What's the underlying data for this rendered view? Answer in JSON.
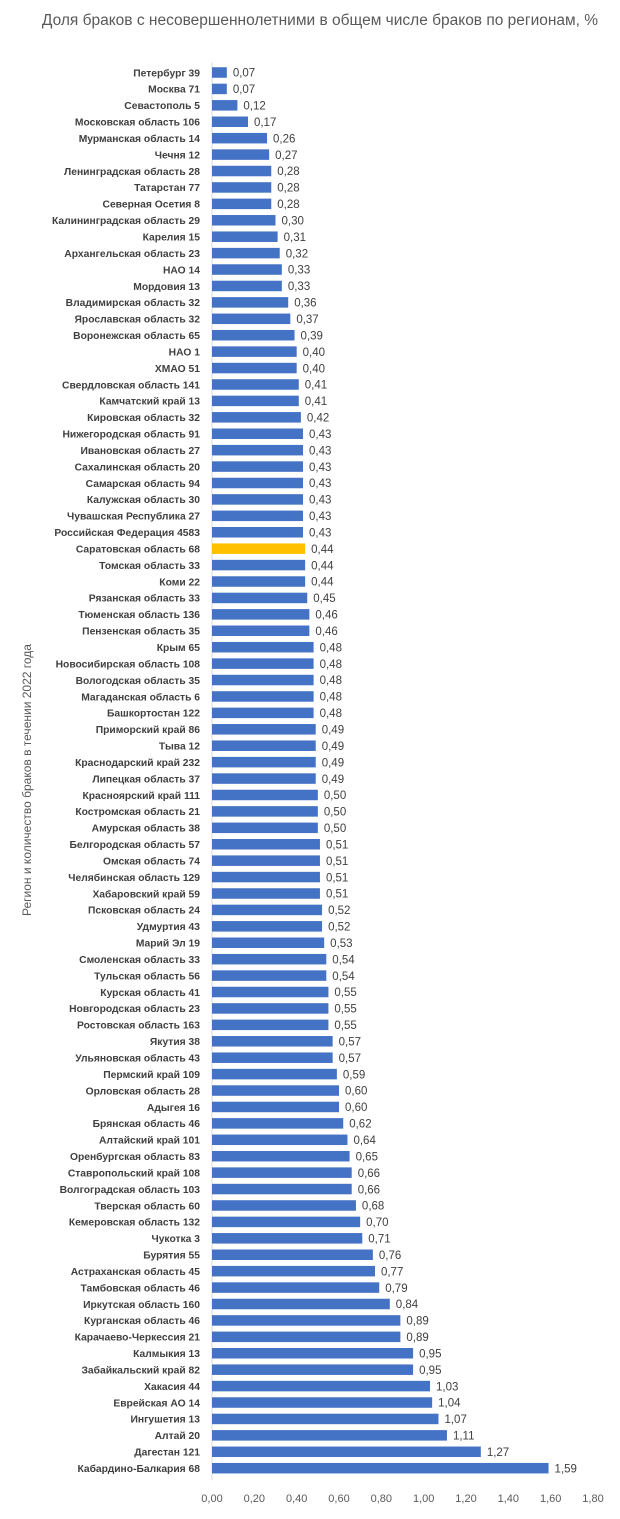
{
  "chart_data": {
    "type": "bar",
    "orientation": "horizontal",
    "title": "Доля браков с несовершеннолетними в общем числе браков по регионам, %",
    "ylabel": "Регион и количество браков в течении 2022 года",
    "xlim": [
      0,
      1.8
    ],
    "x_ticks": [
      "0,00",
      "0,20",
      "0,40",
      "0,60",
      "0,80",
      "1,00",
      "1,20",
      "1,40",
      "1,60",
      "1,80"
    ],
    "grid": false,
    "colors": {
      "bar": "#4472C4",
      "highlight": "#FFC000"
    },
    "highlight_index": 29,
    "categories": [
      "Петербург 39",
      "Москва 71",
      "Севастополь 5",
      "Московская область 106",
      "Мурманская область 14",
      "Чечня 12",
      "Ленинградская область 28",
      "Татарстан 77",
      "Северная Осетия 8",
      "Калининградская область 29",
      "Карелия 15",
      "Архангельская область 23",
      "НАО 14",
      "Мордовия 13",
      "Владимирская область 32",
      "Ярославская область 32",
      "Воронежская область 65",
      "НАО 1",
      "ХМАО 51",
      "Свердловская область 141",
      "Камчатский край 13",
      "Кировская область 32",
      "Нижегородская область 91",
      "Ивановская область 27",
      "Сахалинская область 20",
      "Самарская область 94",
      "Калужская область 30",
      "Чувашская Республика 27",
      "Российская Федерация 4583",
      "Саратовская область 68",
      "Томская область 33",
      "Коми 22",
      "Рязанская область 33",
      "Тюменская область 136",
      "Пензенская область 35",
      "Крым 65",
      "Новосибирская область 108",
      "Вологодская область 35",
      "Магаданская область 6",
      "Башкортостан 122",
      "Приморский край 86",
      "Тыва 12",
      "Краснодарский край 232",
      "Липецкая область 37",
      "Красноярский край 111",
      "Костромская область 21",
      "Амурская область 38",
      "Белгородская область 57",
      "Омская область 74",
      "Челябинская область 129",
      "Хабаровский край 59",
      "Псковская область 24",
      "Удмуртия 43",
      "Марий Эл 19",
      "Смоленская область 33",
      "Тульская область 56",
      "Курская область 41",
      "Новгородская область 23",
      "Ростовская область 163",
      "Якутия 38",
      "Ульяновская область 43",
      "Пермский край 109",
      "Орловская область 28",
      "Адыгея 16",
      "Брянская область 46",
      "Алтайский край 101",
      "Оренбургская область 83",
      "Ставропольский край 108",
      "Волгоградская область 103",
      "Тверская область 60",
      "Кемеровская область 132",
      "Чукотка 3",
      "Бурятия 55",
      "Астраханская область 45",
      "Тамбовская область 46",
      "Иркутская область 160",
      "Курганская область 46",
      "Карачаево-Черкессия 21",
      "Калмыкия 13",
      "Забайкальский край 82",
      "Хакасия 44",
      "Еврейская АО 14",
      "Ингушетия 13",
      "Алтай 20",
      "Дагестан 121",
      "Кабардино-Балкария 68"
    ],
    "values": [
      0.07,
      0.07,
      0.12,
      0.17,
      0.26,
      0.27,
      0.28,
      0.28,
      0.28,
      0.3,
      0.31,
      0.32,
      0.33,
      0.33,
      0.36,
      0.37,
      0.39,
      0.4,
      0.4,
      0.41,
      0.41,
      0.42,
      0.43,
      0.43,
      0.43,
      0.43,
      0.43,
      0.43,
      0.43,
      0.44,
      0.44,
      0.44,
      0.45,
      0.46,
      0.46,
      0.48,
      0.48,
      0.48,
      0.48,
      0.48,
      0.49,
      0.49,
      0.49,
      0.49,
      0.5,
      0.5,
      0.5,
      0.51,
      0.51,
      0.51,
      0.51,
      0.52,
      0.52,
      0.53,
      0.54,
      0.54,
      0.55,
      0.55,
      0.55,
      0.57,
      0.57,
      0.59,
      0.6,
      0.6,
      0.62,
      0.64,
      0.65,
      0.66,
      0.66,
      0.68,
      0.7,
      0.71,
      0.76,
      0.77,
      0.79,
      0.84,
      0.89,
      0.89,
      0.95,
      0.95,
      1.03,
      1.04,
      1.07,
      1.11,
      1.27,
      1.59
    ],
    "value_labels": [
      "0,07",
      "0,07",
      "0,12",
      "0,17",
      "0,26",
      "0,27",
      "0,28",
      "0,28",
      "0,28",
      "0,30",
      "0,31",
      "0,32",
      "0,33",
      "0,33",
      "0,36",
      "0,37",
      "0,39",
      "0,40",
      "0,40",
      "0,41",
      "0,41",
      "0,42",
      "0,43",
      "0,43",
      "0,43",
      "0,43",
      "0,43",
      "0,43",
      "0,43",
      "0,44",
      "0,44",
      "0,44",
      "0,45",
      "0,46",
      "0,46",
      "0,48",
      "0,48",
      "0,48",
      "0,48",
      "0,48",
      "0,49",
      "0,49",
      "0,49",
      "0,49",
      "0,50",
      "0,50",
      "0,50",
      "0,51",
      "0,51",
      "0,51",
      "0,51",
      "0,52",
      "0,52",
      "0,53",
      "0,54",
      "0,54",
      "0,55",
      "0,55",
      "0,55",
      "0,57",
      "0,57",
      "0,59",
      "0,60",
      "0,60",
      "0,62",
      "0,64",
      "0,65",
      "0,66",
      "0,66",
      "0,68",
      "0,70",
      "0,71",
      "0,76",
      "0,77",
      "0,79",
      "0,84",
      "0,89",
      "0,89",
      "0,95",
      "0,95",
      "1,03",
      "1,04",
      "1,07",
      "1,11",
      "1,27",
      "1,59"
    ]
  }
}
